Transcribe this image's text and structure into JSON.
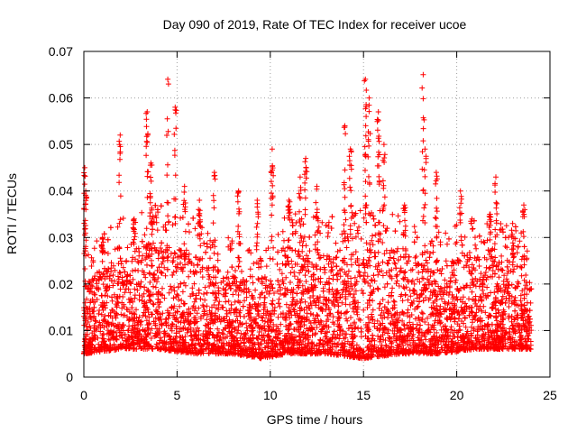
{
  "chart_data": {
    "type": "scatter",
    "title": "Day 090 of 2019, Rate Of TEC Index for receiver ucoe",
    "xlabel": "GPS time / hours",
    "ylabel": "ROTI / TECUs",
    "xlim": [
      0,
      25
    ],
    "ylim": [
      0,
      0.07
    ],
    "xticks": [
      0,
      5,
      10,
      15,
      20,
      25
    ],
    "yticks": [
      0,
      0.01,
      0.02,
      0.03,
      0.04,
      0.05,
      0.06,
      0.07
    ],
    "xtick_labels": [
      "0",
      "5",
      "10",
      "15",
      "20",
      "25"
    ],
    "ytick_labels": [
      "0",
      "0.01",
      "0.02",
      "0.03",
      "0.04",
      "0.05",
      "0.06",
      "0.07"
    ],
    "grid": true,
    "marker": "+",
    "series": [
      {
        "name": "ROTI",
        "color": "#ff0000",
        "x_range": [
          0,
          24
        ],
        "baseline_profile": [
          {
            "x": 0.0,
            "lo": 0.005,
            "hi": 0.02
          },
          {
            "x": 2.0,
            "lo": 0.006,
            "hi": 0.026
          },
          {
            "x": 4.0,
            "lo": 0.006,
            "hi": 0.03
          },
          {
            "x": 6.0,
            "lo": 0.005,
            "hi": 0.026
          },
          {
            "x": 8.0,
            "lo": 0.005,
            "hi": 0.022
          },
          {
            "x": 9.5,
            "lo": 0.004,
            "hi": 0.018
          },
          {
            "x": 11.0,
            "lo": 0.005,
            "hi": 0.028
          },
          {
            "x": 13.0,
            "lo": 0.005,
            "hi": 0.026
          },
          {
            "x": 15.0,
            "lo": 0.004,
            "hi": 0.03
          },
          {
            "x": 17.0,
            "lo": 0.005,
            "hi": 0.027
          },
          {
            "x": 19.0,
            "lo": 0.005,
            "hi": 0.024
          },
          {
            "x": 21.0,
            "lo": 0.006,
            "hi": 0.027
          },
          {
            "x": 23.0,
            "lo": 0.006,
            "hi": 0.025
          },
          {
            "x": 24.0,
            "lo": 0.006,
            "hi": 0.022
          }
        ],
        "spikes": [
          {
            "x": 0.05,
            "peak": 0.045
          },
          {
            "x": 0.1,
            "peak": 0.04
          },
          {
            "x": 1.0,
            "peak": 0.03
          },
          {
            "x": 1.95,
            "peak": 0.052
          },
          {
            "x": 2.7,
            "peak": 0.034
          },
          {
            "x": 3.4,
            "peak": 0.057
          },
          {
            "x": 3.6,
            "peak": 0.046
          },
          {
            "x": 4.5,
            "peak": 0.064
          },
          {
            "x": 4.9,
            "peak": 0.058
          },
          {
            "x": 5.4,
            "peak": 0.041
          },
          {
            "x": 6.2,
            "peak": 0.038
          },
          {
            "x": 7.0,
            "peak": 0.044
          },
          {
            "x": 8.3,
            "peak": 0.04
          },
          {
            "x": 9.3,
            "peak": 0.038
          },
          {
            "x": 10.1,
            "peak": 0.049
          },
          {
            "x": 11.0,
            "peak": 0.038
          },
          {
            "x": 11.6,
            "peak": 0.043
          },
          {
            "x": 11.9,
            "peak": 0.047
          },
          {
            "x": 12.5,
            "peak": 0.041
          },
          {
            "x": 14.0,
            "peak": 0.054
          },
          {
            "x": 14.3,
            "peak": 0.049
          },
          {
            "x": 15.1,
            "peak": 0.064
          },
          {
            "x": 15.3,
            "peak": 0.06
          },
          {
            "x": 15.8,
            "peak": 0.057
          },
          {
            "x": 16.1,
            "peak": 0.05
          },
          {
            "x": 17.2,
            "peak": 0.037
          },
          {
            "x": 18.2,
            "peak": 0.065
          },
          {
            "x": 18.3,
            "peak": 0.049
          },
          {
            "x": 18.9,
            "peak": 0.044
          },
          {
            "x": 20.2,
            "peak": 0.04
          },
          {
            "x": 21.8,
            "peak": 0.035
          },
          {
            "x": 22.1,
            "peak": 0.043
          },
          {
            "x": 23.0,
            "peak": 0.033
          },
          {
            "x": 23.6,
            "peak": 0.037
          }
        ]
      }
    ]
  }
}
